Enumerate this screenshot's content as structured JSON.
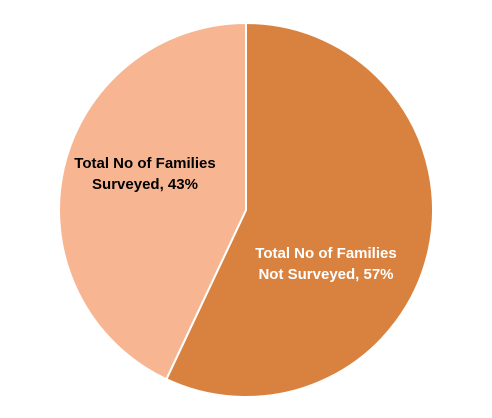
{
  "chart_data": {
    "type": "pie",
    "categories": [
      "Total No of Families Not Surveyed",
      "Total No of Families Surveyed"
    ],
    "values": [
      57,
      43
    ],
    "unit": "%",
    "start": "12 o'clock, clockwise",
    "slices": [
      {
        "name": "Total No of Families Not Surveyed",
        "value": 57,
        "color": "#D9823F",
        "label_color": "#ffffff",
        "label_lines": [
          "Total No of Families",
          "Not Surveyed, 57%"
        ]
      },
      {
        "name": "Total No of Families Surveyed",
        "value": 43,
        "color": "#F7B591",
        "label_color": "#000000",
        "label_lines": [
          "Total No of Families",
          "Surveyed, 43%"
        ]
      }
    ],
    "legend": "none",
    "title": ""
  }
}
